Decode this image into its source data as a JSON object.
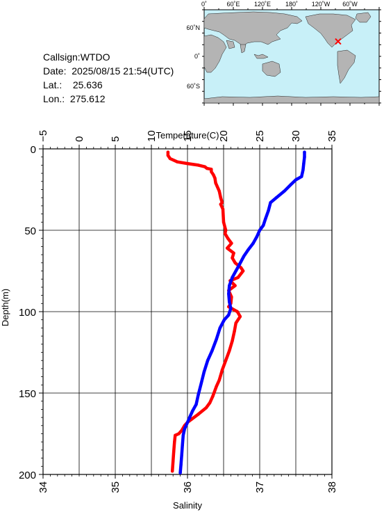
{
  "station": {
    "callsign_line": "Callsign:WTDO",
    "date_label": "Date:",
    "date_value": "2025/08/15 21:54(UTC)",
    "lat_label": "Lat.:",
    "lat_value": "25.636",
    "lon_label": "Lon.:",
    "lon_value": "275.612"
  },
  "map": {
    "lon_labels": [
      "0˚",
      "60˚E",
      "120˚E",
      "180˚",
      "120˚W",
      "60˚W"
    ],
    "lat_labels": [
      "60˚N",
      "0˚",
      "60˚S"
    ],
    "ocean_color": "#c8f0f8",
    "land_color": "#b4b4b4",
    "marker_color": "#ff0000",
    "marker_lat": 25.636,
    "marker_lon": 275.612
  },
  "chart_data": {
    "type": "line",
    "y_axis": {
      "label": "Depth(m)",
      "range": [
        0,
        200
      ],
      "ticks": [
        "0",
        "50",
        "100",
        "150",
        "200"
      ],
      "inverted": true
    },
    "top_axis": {
      "label": "Temperature(C)",
      "range": [
        -5,
        35
      ],
      "ticks": [
        "−5",
        "0",
        "5",
        "10",
        "15",
        "20",
        "25",
        "30",
        "35"
      ]
    },
    "bottom_axis": {
      "label": "Salinity",
      "range": [
        34,
        38
      ],
      "ticks": [
        "34",
        "35",
        "36",
        "37",
        "38"
      ]
    },
    "grid": true,
    "series": [
      {
        "color": "#ff0000",
        "axis": "top",
        "points": [
          [
            12.3,
            2
          ],
          [
            12.3,
            4
          ],
          [
            12.6,
            6
          ],
          [
            13.6,
            8
          ],
          [
            15.0,
            9
          ],
          [
            16.5,
            10
          ],
          [
            17.4,
            11
          ],
          [
            17.7,
            12
          ],
          [
            18.3,
            12.5
          ],
          [
            18.3,
            14
          ],
          [
            18.6,
            16
          ],
          [
            18.8,
            18
          ],
          [
            18.9,
            21
          ],
          [
            19.4,
            26
          ],
          [
            19.6,
            30
          ],
          [
            19.8,
            33
          ],
          [
            19.6,
            34
          ],
          [
            19.9,
            37
          ],
          [
            20.0,
            45
          ],
          [
            20.3,
            50
          ],
          [
            20.2,
            52
          ],
          [
            20.6,
            55
          ],
          [
            21.1,
            58
          ],
          [
            20.5,
            61
          ],
          [
            21.4,
            64
          ],
          [
            21.2,
            67
          ],
          [
            21.6,
            70
          ],
          [
            22.4,
            73
          ],
          [
            22.7,
            75
          ],
          [
            22.0,
            79
          ],
          [
            20.9,
            81
          ],
          [
            21.6,
            84
          ],
          [
            20.7,
            87
          ],
          [
            21.1,
            91
          ],
          [
            21.0,
            95
          ],
          [
            20.7,
            97
          ],
          [
            21.9,
            100
          ],
          [
            22.3,
            103
          ],
          [
            21.7,
            107
          ],
          [
            21.5,
            112
          ],
          [
            21.2,
            118
          ],
          [
            20.8,
            124
          ],
          [
            20.3,
            130
          ],
          [
            19.8,
            136
          ],
          [
            19.4,
            142
          ],
          [
            19.0,
            146
          ],
          [
            18.5,
            152
          ],
          [
            18.1,
            156
          ],
          [
            17.6,
            159
          ],
          [
            16.5,
            163
          ],
          [
            15.6,
            166
          ],
          [
            15.0,
            168
          ],
          [
            14.6,
            170
          ],
          [
            14.2,
            173
          ],
          [
            13.8,
            175
          ],
          [
            13.3,
            176
          ],
          [
            13.2,
            180
          ],
          [
            13.1,
            186
          ],
          [
            13.0,
            192
          ],
          [
            12.9,
            198
          ]
        ]
      },
      {
        "color": "#0000ff",
        "axis": "bottom",
        "points": [
          [
            37.62,
            2
          ],
          [
            37.62,
            5
          ],
          [
            37.61,
            9
          ],
          [
            37.6,
            13
          ],
          [
            37.58,
            17
          ],
          [
            37.5,
            19
          ],
          [
            37.43,
            22
          ],
          [
            37.34,
            26
          ],
          [
            37.23,
            30
          ],
          [
            37.15,
            33
          ],
          [
            37.12,
            38
          ],
          [
            37.08,
            43
          ],
          [
            37.05,
            47
          ],
          [
            37.0,
            50
          ],
          [
            36.96,
            54
          ],
          [
            36.91,
            58
          ],
          [
            36.84,
            62
          ],
          [
            36.78,
            66
          ],
          [
            36.72,
            71
          ],
          [
            36.67,
            75
          ],
          [
            36.62,
            79
          ],
          [
            36.58,
            84
          ],
          [
            36.57,
            89
          ],
          [
            36.58,
            94
          ],
          [
            36.6,
            98
          ],
          [
            36.57,
            102
          ],
          [
            36.51,
            105
          ],
          [
            36.45,
            110
          ],
          [
            36.4,
            117
          ],
          [
            36.34,
            124
          ],
          [
            36.28,
            130
          ],
          [
            36.23,
            137
          ],
          [
            36.19,
            144
          ],
          [
            36.15,
            151
          ],
          [
            36.12,
            157
          ],
          [
            36.07,
            161
          ],
          [
            36.03,
            165
          ],
          [
            35.99,
            169
          ],
          [
            35.96,
            172
          ],
          [
            35.94,
            176
          ],
          [
            35.93,
            182
          ],
          [
            35.92,
            188
          ],
          [
            35.91,
            194
          ],
          [
            35.9,
            199
          ]
        ]
      }
    ]
  }
}
